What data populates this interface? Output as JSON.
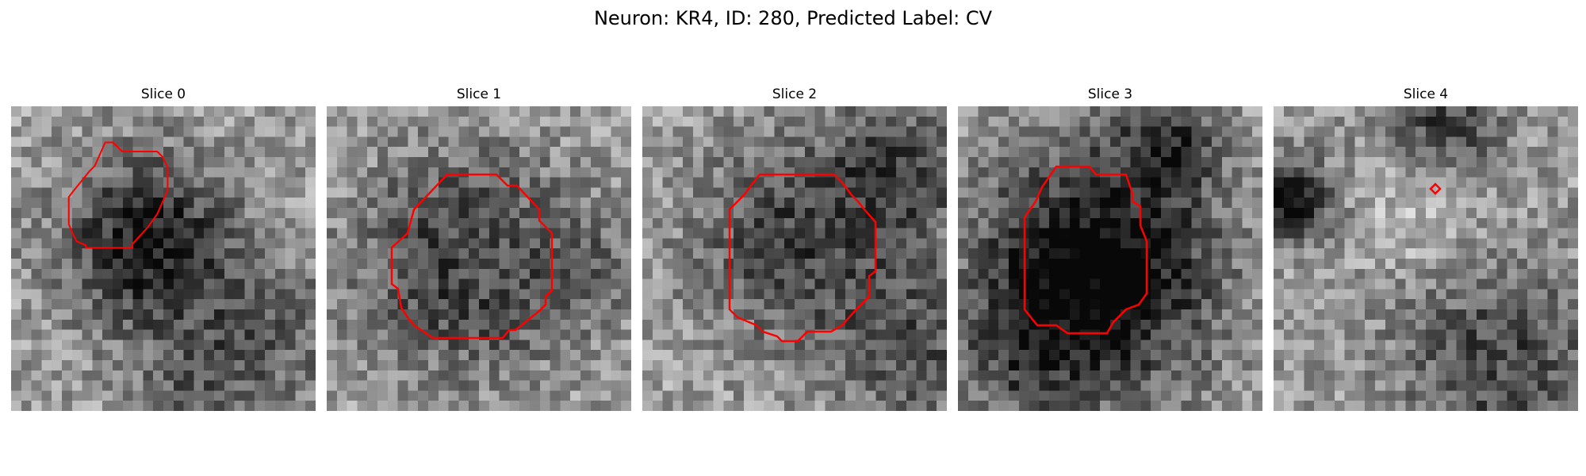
{
  "figure": {
    "title": "Neuron: KR4, ID: 280, Predicted Label: CV"
  },
  "panels": [
    {
      "title": "Slice 0"
    },
    {
      "title": "Slice 1"
    },
    {
      "title": "Slice 2"
    },
    {
      "title": "Slice 3"
    },
    {
      "title": "Slice 4"
    }
  ],
  "colors": {
    "contour": "#ff0000",
    "background": "#ffffff",
    "colormap": "grayscale"
  }
}
